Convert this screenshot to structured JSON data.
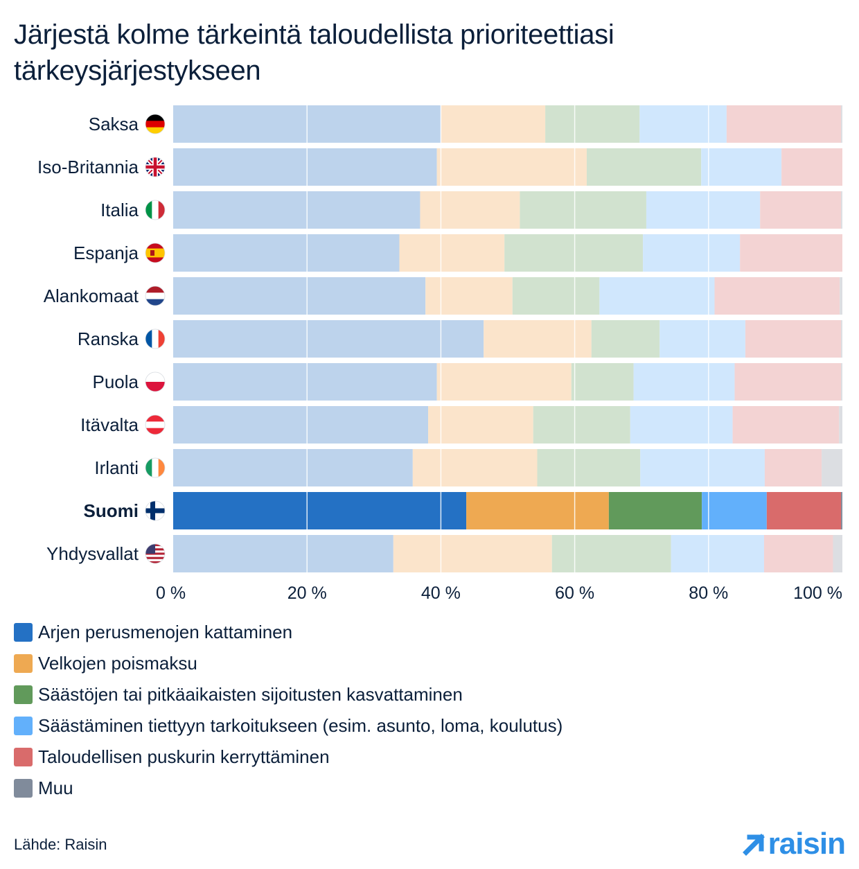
{
  "title": "Järjestä kolme tärkeintä taloudellista prioriteettiasi tärkeysjärjestykseen",
  "source": "Lähde: Raisin",
  "logo": {
    "text": "raisin",
    "icon": "arrow-up-right-icon",
    "color": "#2e8fe6"
  },
  "chart_data": {
    "type": "bar",
    "orientation": "horizontal",
    "stacked": true,
    "xlim": [
      0,
      100
    ],
    "x_ticks": [
      "0 %",
      "20 %",
      "40 %",
      "60 %",
      "80 %",
      "100 %"
    ],
    "grid": true,
    "legend_position": "bottom-left",
    "highlight": "Suomi",
    "categories": [
      "Saksa",
      "Iso-Britannia",
      "Italia",
      "Espanja",
      "Alankomaat",
      "Ranska",
      "Puola",
      "Itävalta",
      "Irlanti",
      "Suomi",
      "Yhdysvallat"
    ],
    "flags": [
      "flag-germany-icon",
      "flag-uk-icon",
      "flag-italy-icon",
      "flag-spain-icon",
      "flag-netherlands-icon",
      "flag-france-icon",
      "flag-poland-icon",
      "flag-austria-icon",
      "flag-ireland-icon",
      "flag-finland-icon",
      "flag-usa-icon"
    ],
    "series": [
      {
        "name": "Arjen perusmenojen kattaminen",
        "color": "#2471c4",
        "muted": "#bdd3ec",
        "values": [
          40.0,
          39.4,
          36.9,
          33.8,
          37.7,
          46.4,
          39.4,
          38.1,
          35.8,
          43.8,
          32.9
        ]
      },
      {
        "name": "Velkojen poismaksu",
        "color": "#eea952",
        "muted": "#fbe4cb",
        "values": [
          15.6,
          22.4,
          14.9,
          15.7,
          13.0,
          16.1,
          20.1,
          15.7,
          18.6,
          21.3,
          23.7
        ]
      },
      {
        "name": "Säästöjen tai pitkäaikaisten sijoitusten kasvattaminen",
        "color": "#619a5b",
        "muted": "#d1e2cf",
        "values": [
          14.1,
          17.1,
          18.9,
          20.7,
          13.0,
          10.2,
          9.3,
          14.5,
          15.4,
          13.9,
          17.8
        ]
      },
      {
        "name": "Säästäminen tiettyyn tarkoitukseen (esim. asunto, loma, koulutus)",
        "color": "#62b0fb",
        "muted": "#d0e7fd",
        "values": [
          13.0,
          12.0,
          17.0,
          14.5,
          17.2,
          12.8,
          15.1,
          15.3,
          18.6,
          9.7,
          13.9
        ]
      },
      {
        "name": "Taloudellisen puskurin kerryttäminen",
        "color": "#d96b6b",
        "muted": "#f3d3d3",
        "values": [
          17.1,
          9.1,
          12.1,
          15.3,
          18.7,
          14.3,
          15.9,
          15.9,
          8.5,
          11.1,
          10.3
        ]
      },
      {
        "name": "Muu",
        "color": "#808b9b",
        "muted": "#dcdee2",
        "values": [
          0.2,
          0.0,
          0.2,
          0.0,
          0.4,
          0.2,
          0.2,
          0.5,
          3.1,
          0.2,
          1.4
        ]
      }
    ]
  }
}
